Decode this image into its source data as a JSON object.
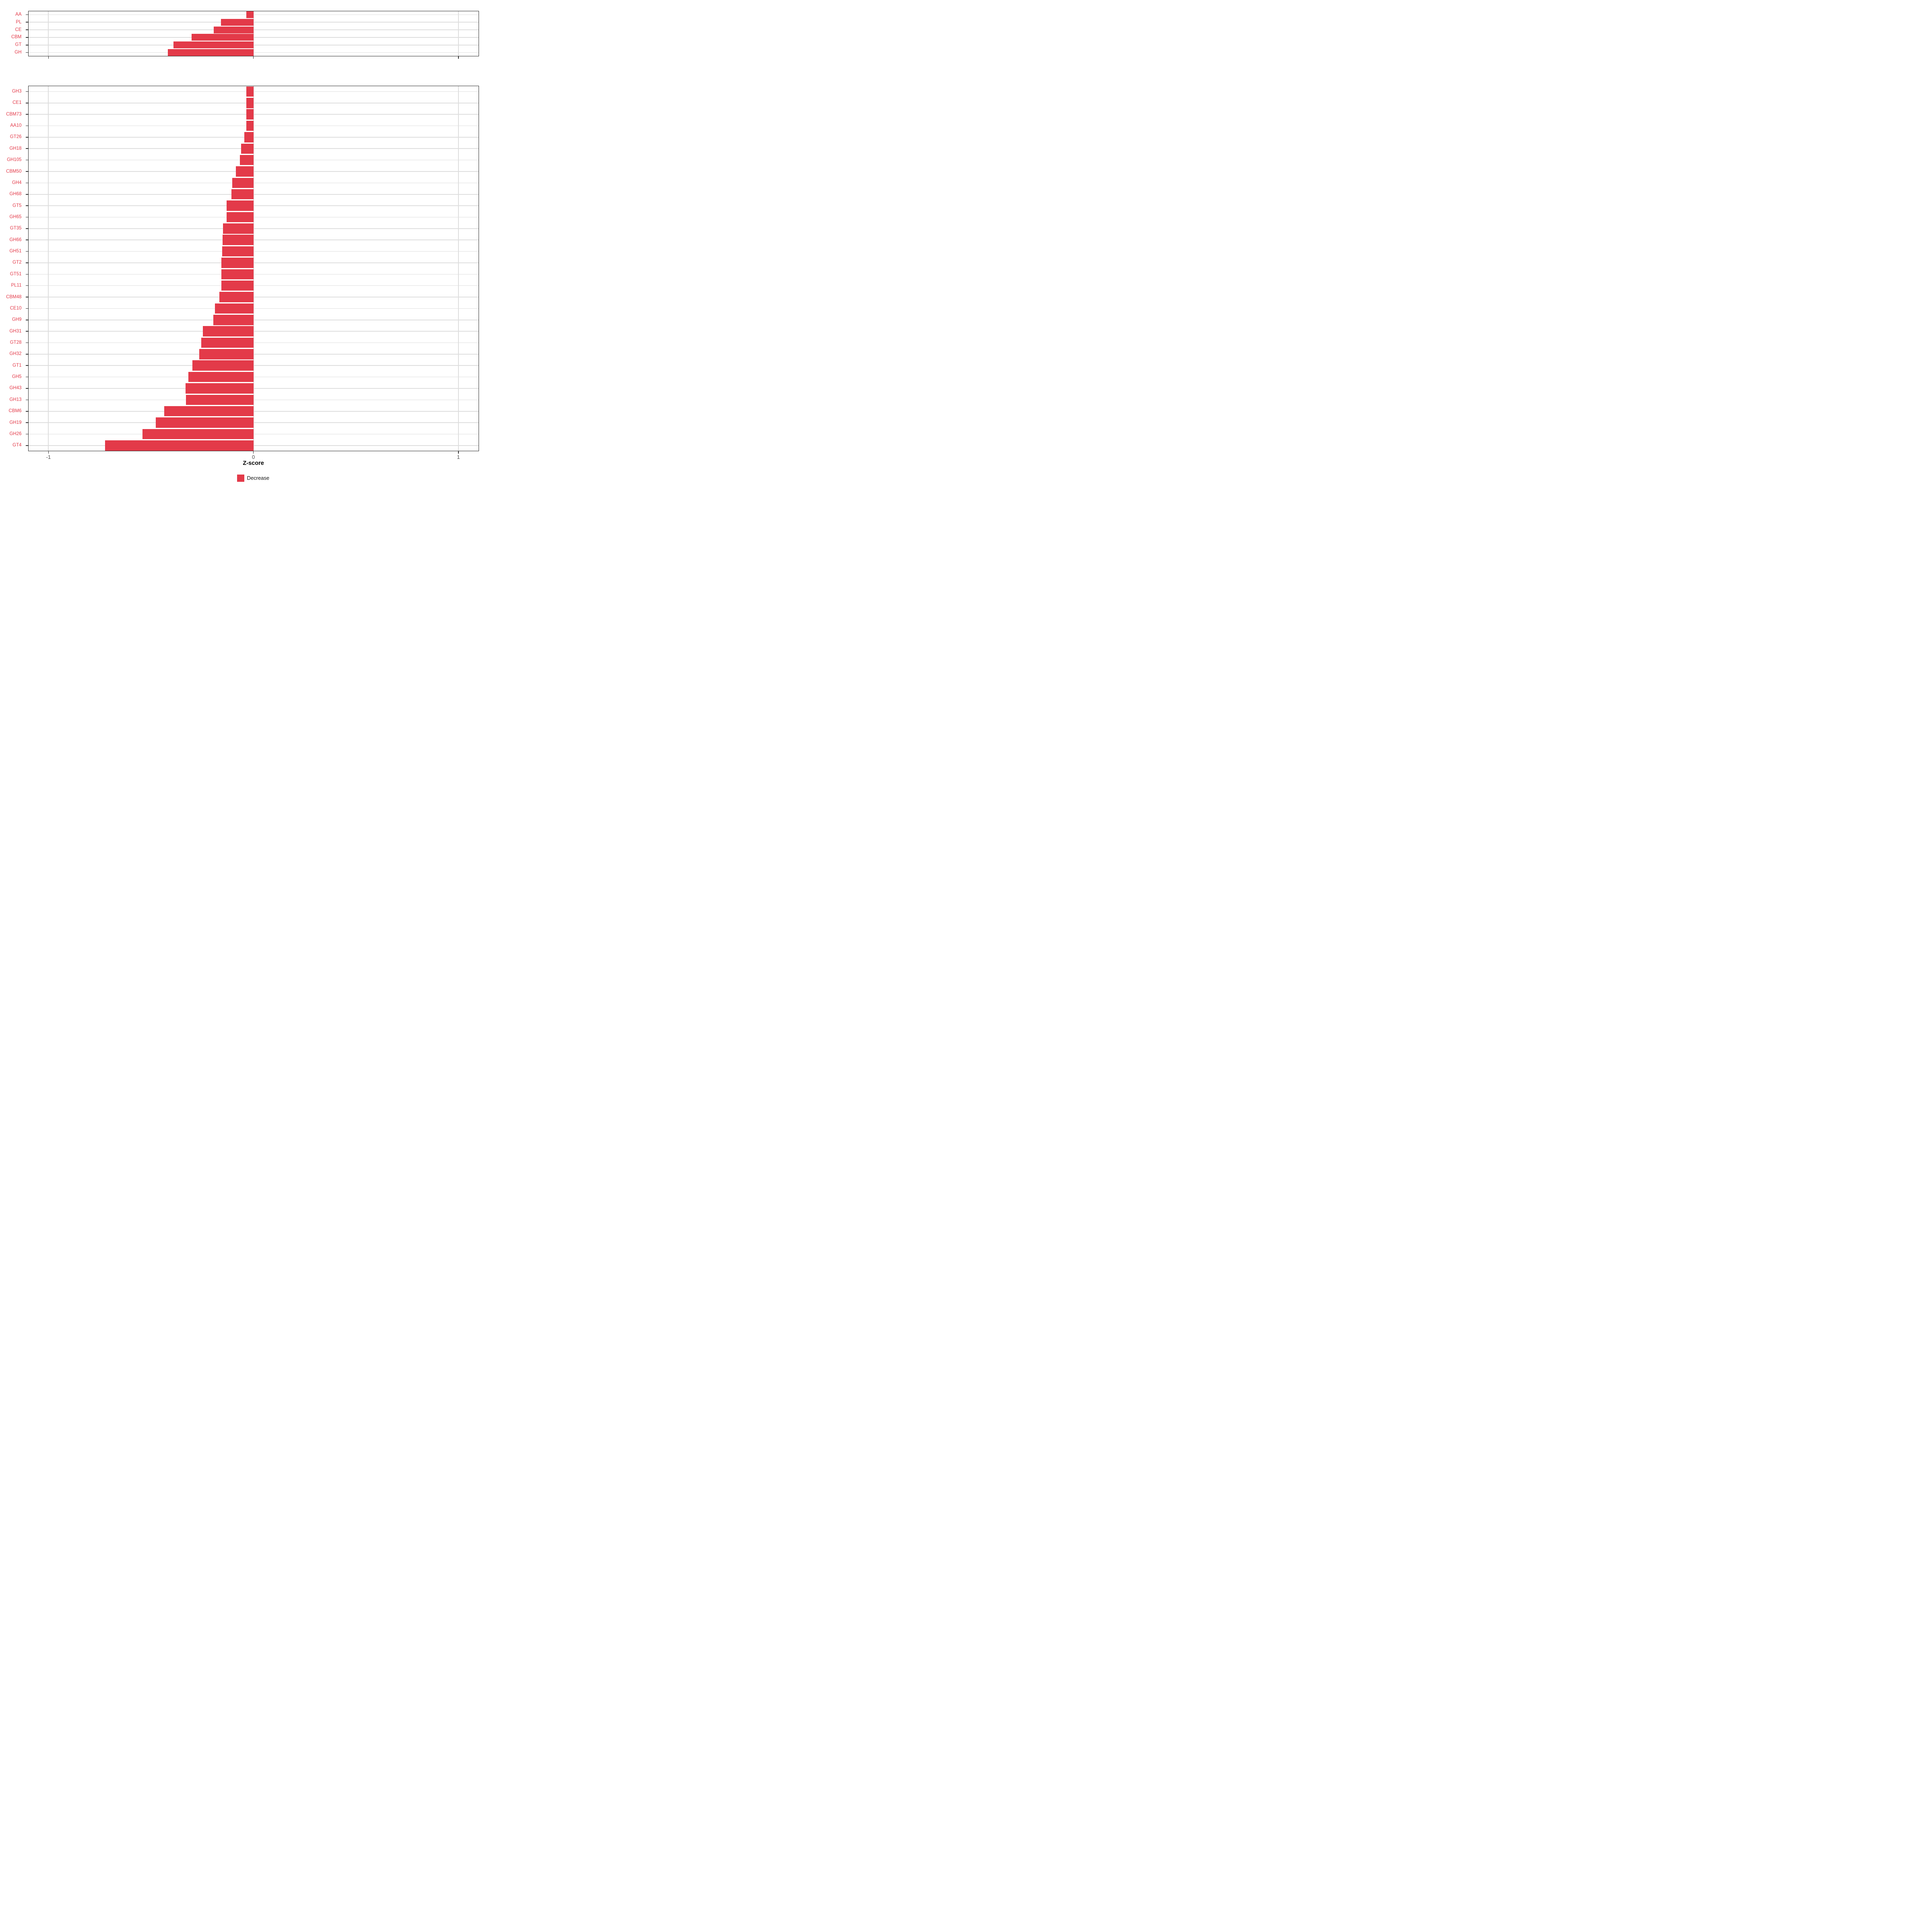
{
  "chart_data": {
    "type": "bar",
    "orientation": "horizontal",
    "title": "",
    "xlabel": "Z-score",
    "ylabel": "",
    "x_ticks": [
      -1,
      0,
      1
    ],
    "x_tick_labels": [
      "-1",
      "0",
      "1"
    ],
    "x_range": [
      -1.1,
      1.1
    ],
    "grid": "major-only",
    "bar_color": "#E33A49",
    "panels": [
      {
        "name": "cazyme-classes",
        "categories": [
          "AA",
          "PL",
          "CE",
          "CBM",
          "GT",
          "GH"
        ],
        "values": [
          -0.034,
          -0.158,
          -0.194,
          -0.301,
          -0.39,
          -0.417
        ]
      },
      {
        "name": "cazyme-families",
        "categories": [
          "GH3",
          "CE1",
          "CBM73",
          "AA10",
          "GT26",
          "GH18",
          "GH105",
          "CBM50",
          "GH4",
          "GH68",
          "GT5",
          "GH65",
          "GT35",
          "GH66",
          "GH51",
          "GT2",
          "GT51",
          "PL11",
          "CBM48",
          "CE10",
          "GH9",
          "GH31",
          "GT28",
          "GH32",
          "GT1",
          "GH5",
          "GH43",
          "GH13",
          "CBM6",
          "GH19",
          "GH26",
          "GT4"
        ],
        "values": [
          -0.034,
          -0.034,
          -0.034,
          -0.034,
          -0.044,
          -0.06,
          -0.067,
          -0.085,
          -0.104,
          -0.107,
          -0.131,
          -0.131,
          -0.148,
          -0.15,
          -0.153,
          -0.156,
          -0.156,
          -0.157,
          -0.166,
          -0.188,
          -0.195,
          -0.247,
          -0.254,
          -0.265,
          -0.298,
          -0.317,
          -0.332,
          -0.33,
          -0.435,
          -0.476,
          -0.541,
          -0.724
        ]
      }
    ],
    "legend": [
      {
        "label": "Decrease",
        "color": "#E33A49"
      }
    ],
    "legend_position": "bottom"
  },
  "colors": {
    "bar": "#E33A49",
    "category_label": "#E33A49",
    "tick_label": "#4d4d4d",
    "axis_title": "#000000",
    "gridline": "#dedede",
    "panel_border": "#2b2b2b",
    "background": "#ffffff"
  }
}
